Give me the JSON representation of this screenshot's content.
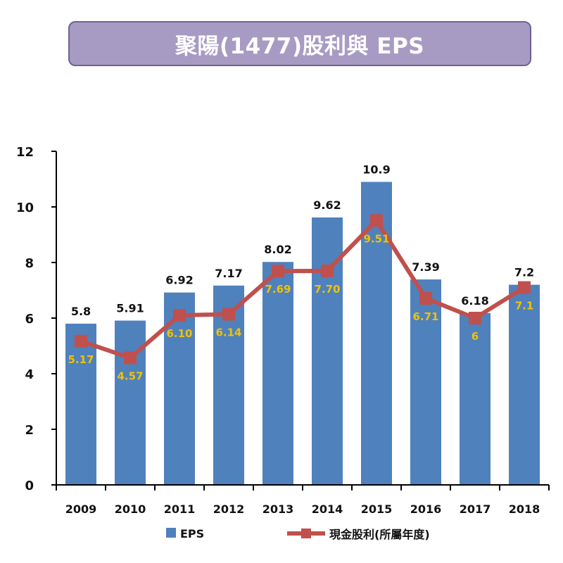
{
  "title": "聚陽(1477)股利與 EPS",
  "colors": {
    "title_bg": "#a79bc4",
    "bar": "#4f81bd",
    "line": "#c0504d",
    "dividend_label": "#f2c200"
  },
  "chart_data": {
    "type": "bar",
    "categories": [
      "2009",
      "2010",
      "2011",
      "2012",
      "2013",
      "2014",
      "2015",
      "2016",
      "2017",
      "2018"
    ],
    "series": [
      {
        "name": "EPS",
        "type": "bar",
        "values": [
          5.8,
          5.91,
          6.92,
          7.17,
          8.02,
          9.62,
          10.9,
          7.39,
          6.18,
          7.2
        ],
        "labels": [
          "5.8",
          "5.91",
          "6.92",
          "7.17",
          "8.02",
          "9.62",
          "10.9",
          "7.39",
          "6.18",
          "7.2"
        ]
      },
      {
        "name": "現金股利(所屬年度)",
        "type": "line",
        "values": [
          5.17,
          4.57,
          6.1,
          6.14,
          7.69,
          7.7,
          9.51,
          6.71,
          6,
          7.1
        ],
        "labels": [
          "5.17",
          "4.57",
          "6.10",
          "6.14",
          "7.69",
          "7.70",
          "9.51",
          "6.71",
          "6",
          "7.1"
        ]
      }
    ],
    "yticks": [
      "0",
      "2",
      "4",
      "6",
      "8",
      "10",
      "12"
    ],
    "ylim": [
      0,
      12
    ],
    "xlabel": "",
    "ylabel": "",
    "grid": false,
    "legend": "bottom"
  }
}
